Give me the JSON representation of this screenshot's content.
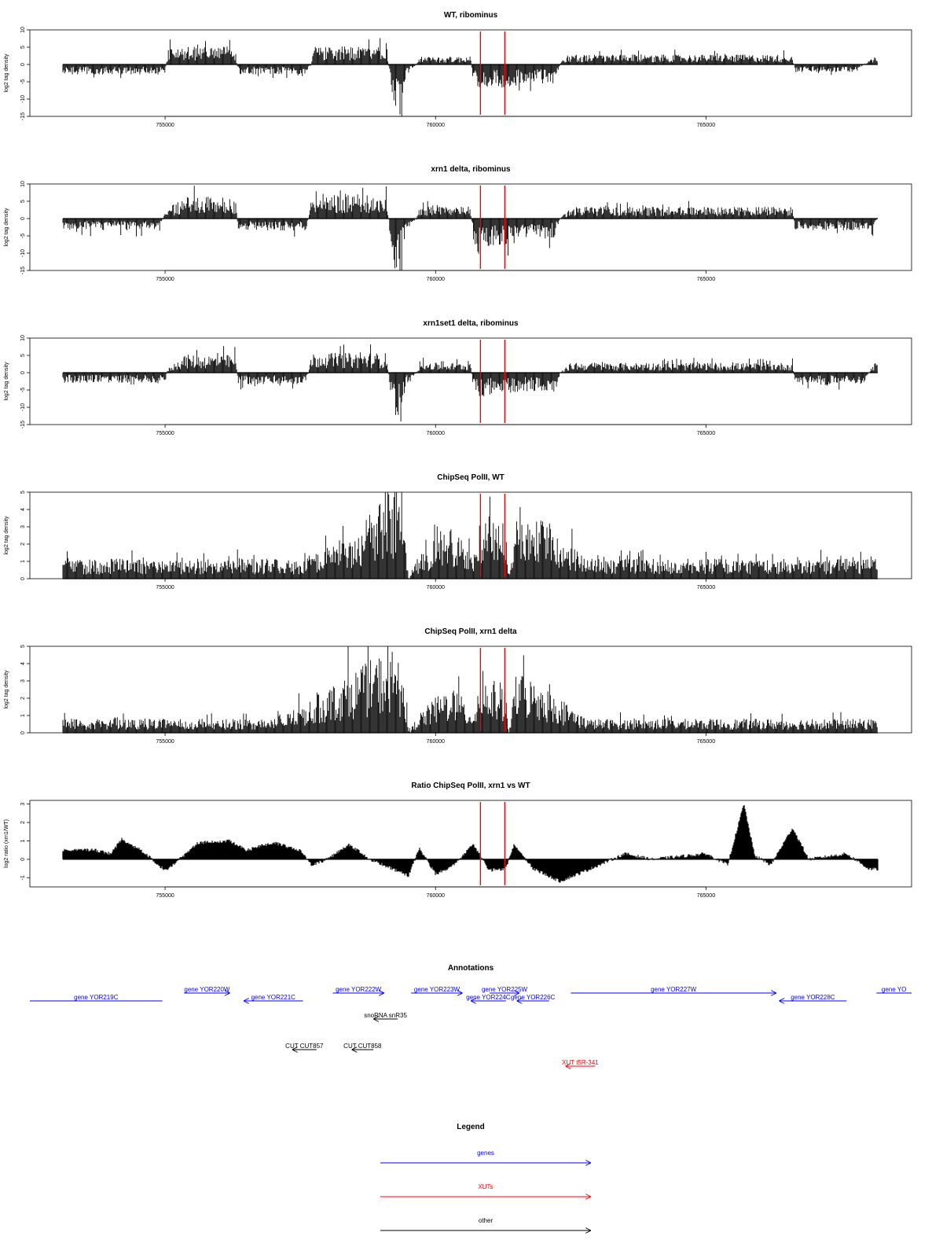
{
  "colors": {
    "gene": "#0000ff",
    "xut": "#ff0000",
    "other": "#000000",
    "marker": "#ff0000",
    "signal": "#000000"
  },
  "chart_data": [
    {
      "type": "bar",
      "title": "WT, ribominus",
      "ylabel": "log2 tag density",
      "ylim": [
        -15,
        10
      ],
      "yticks": [
        "-15",
        "-10",
        "-5",
        "0",
        "5",
        "10"
      ],
      "xlim": [
        752500,
        768800
      ],
      "xticks": [
        "755000",
        "760000",
        "765000"
      ],
      "markers": [
        760830,
        761280
      ],
      "profile": [
        [
          753700,
          -2.5
        ],
        [
          755000,
          -2.5
        ],
        [
          755050,
          4.5
        ],
        [
          756300,
          4.5
        ],
        [
          756350,
          -2.5
        ],
        [
          757600,
          -2.5
        ],
        [
          757700,
          0
        ],
        [
          757750,
          4.5
        ],
        [
          759100,
          4.5
        ],
        [
          759150,
          -3
        ],
        [
          759250,
          -13
        ],
        [
          759350,
          -13
        ],
        [
          759450,
          -3
        ],
        [
          759650,
          0
        ],
        [
          759700,
          2
        ],
        [
          760650,
          2
        ],
        [
          760700,
          -6
        ],
        [
          761450,
          -6
        ],
        [
          761500,
          -5
        ],
        [
          762200,
          -5
        ],
        [
          762300,
          0
        ],
        [
          762400,
          2.5
        ],
        [
          766600,
          2.5
        ],
        [
          766650,
          -2
        ],
        [
          767800,
          -2
        ],
        [
          767900,
          0
        ],
        [
          768200,
          2.5
        ],
        [
          768300,
          2.5
        ]
      ]
    },
    {
      "type": "bar",
      "title": "xrn1 delta, ribominus",
      "ylabel": "log2 tag density",
      "ylim": [
        -15,
        10
      ],
      "yticks": [
        "-15",
        "-10",
        "-5",
        "0",
        "5",
        "10"
      ],
      "xlim": [
        752500,
        768800
      ],
      "xticks": [
        "755000",
        "760000",
        "765000"
      ],
      "markers": [
        760830,
        761280
      ],
      "profile": [
        [
          753700,
          -3
        ],
        [
          754900,
          -3
        ],
        [
          755000,
          2
        ],
        [
          755350,
          5.5
        ],
        [
          756300,
          5.5
        ],
        [
          756350,
          -3
        ],
        [
          757600,
          -3
        ],
        [
          757650,
          0
        ],
        [
          757700,
          6.5
        ],
        [
          759100,
          6
        ],
        [
          759150,
          -3
        ],
        [
          759250,
          -13
        ],
        [
          759350,
          -13
        ],
        [
          759450,
          -3
        ],
        [
          759650,
          0
        ],
        [
          759700,
          3
        ],
        [
          760650,
          3
        ],
        [
          760700,
          -7
        ],
        [
          761450,
          -7
        ],
        [
          761500,
          -5
        ],
        [
          762200,
          -5
        ],
        [
          762300,
          0
        ],
        [
          762500,
          3
        ],
        [
          766600,
          3
        ],
        [
          766650,
          -3
        ],
        [
          768100,
          -3
        ],
        [
          768200,
          2.5
        ],
        [
          768300,
          2.5
        ]
      ]
    },
    {
      "type": "bar",
      "title": "xrn1set1 delta, ribominus",
      "ylabel": "log2 tag density",
      "ylim": [
        -15,
        10
      ],
      "yticks": [
        "-15",
        "-10",
        "-5",
        "0",
        "5",
        "10"
      ],
      "xlim": [
        752500,
        768800
      ],
      "xticks": [
        "755000",
        "760000",
        "765000"
      ],
      "markers": [
        760830,
        761280
      ],
      "profile": [
        [
          753700,
          -2.5
        ],
        [
          755000,
          -2.5
        ],
        [
          755050,
          1
        ],
        [
          755350,
          4.5
        ],
        [
          756300,
          4.5
        ],
        [
          756350,
          -3
        ],
        [
          757600,
          -3
        ],
        [
          757650,
          0
        ],
        [
          757700,
          5
        ],
        [
          759100,
          5
        ],
        [
          759150,
          -3
        ],
        [
          759250,
          -12
        ],
        [
          759350,
          -12
        ],
        [
          759450,
          -3
        ],
        [
          759650,
          0
        ],
        [
          759700,
          2.5
        ],
        [
          760650,
          2.5
        ],
        [
          760700,
          -6
        ],
        [
          761450,
          -6
        ],
        [
          761500,
          -5
        ],
        [
          762200,
          -5
        ],
        [
          762300,
          0
        ],
        [
          762500,
          2.5
        ],
        [
          766600,
          2.5
        ],
        [
          766650,
          -3
        ],
        [
          767900,
          -3
        ],
        [
          768100,
          2.5
        ],
        [
          768300,
          2.5
        ]
      ]
    },
    {
      "type": "bar",
      "title": "ChipSeq PolII, WT",
      "ylabel": "log2 tag density",
      "ylim": [
        0,
        5
      ],
      "yticks": [
        "0",
        "1",
        "2",
        "3",
        "4",
        "5"
      ],
      "xlim": [
        752500,
        768800
      ],
      "xticks": [
        "755000",
        "760000",
        "765000"
      ],
      "markers": [
        760830,
        761280
      ],
      "profile": [
        [
          753700,
          1
        ],
        [
          757600,
          1
        ],
        [
          758600,
          2.5
        ],
        [
          759000,
          4.5
        ],
        [
          759400,
          4.5
        ],
        [
          759500,
          0
        ],
        [
          759700,
          1.2
        ],
        [
          760300,
          2.8
        ],
        [
          760700,
          1
        ],
        [
          760800,
          3.2
        ],
        [
          761300,
          3
        ],
        [
          761350,
          0
        ],
        [
          761500,
          3.8
        ],
        [
          762200,
          2.5
        ],
        [
          762800,
          1
        ],
        [
          768300,
          1
        ]
      ]
    },
    {
      "type": "bar",
      "title": "ChipSeq PolII, xrn1 delta",
      "ylabel": "log2 tag density",
      "ylim": [
        0,
        5
      ],
      "yticks": [
        "0",
        "1",
        "2",
        "3",
        "4",
        "5"
      ],
      "xlim": [
        752500,
        768800
      ],
      "xticks": [
        "755000",
        "760000",
        "765000"
      ],
      "markers": [
        760830,
        761280
      ],
      "profile": [
        [
          753700,
          0.7
        ],
        [
          757000,
          0.7
        ],
        [
          757600,
          1.5
        ],
        [
          758400,
          3
        ],
        [
          759000,
          4
        ],
        [
          759400,
          3.5
        ],
        [
          759500,
          0
        ],
        [
          759700,
          1
        ],
        [
          760300,
          2.5
        ],
        [
          760700,
          1
        ],
        [
          760800,
          2.8
        ],
        [
          761300,
          2.5
        ],
        [
          761350,
          0
        ],
        [
          761500,
          3.2
        ],
        [
          762200,
          2
        ],
        [
          762800,
          0.7
        ],
        [
          768300,
          0.7
        ]
      ]
    },
    {
      "type": "area",
      "title": "Ratio ChipSeq PolII, xrn1 vs WT",
      "ylabel": "log2 ratio (xrn1/WT)",
      "ylim": [
        -1.5,
        3.2
      ],
      "yticks": [
        "-1",
        "0",
        "1",
        "2",
        "3"
      ],
      "xlim": [
        752500,
        768800
      ],
      "xticks": [
        "755000",
        "760000",
        "765000"
      ],
      "markers": [
        760830,
        761280
      ],
      "profile": [
        [
          753700,
          0.5
        ],
        [
          754000,
          0.3
        ],
        [
          754200,
          1.1
        ],
        [
          754600,
          0.4
        ],
        [
          755000,
          -0.6
        ],
        [
          755400,
          0.3
        ],
        [
          755600,
          0.9
        ],
        [
          756200,
          1
        ],
        [
          756500,
          0.5
        ],
        [
          757000,
          0.9
        ],
        [
          757500,
          0.5
        ],
        [
          757700,
          -0.3
        ],
        [
          758000,
          0
        ],
        [
          758400,
          0.8
        ],
        [
          758800,
          0
        ],
        [
          759500,
          -0.9
        ],
        [
          759700,
          0.6
        ],
        [
          760000,
          -0.8
        ],
        [
          760300,
          -0.4
        ],
        [
          760700,
          0.8
        ],
        [
          761000,
          -0.6
        ],
        [
          761300,
          -0.5
        ],
        [
          761450,
          0.8
        ],
        [
          761800,
          -0.5
        ],
        [
          762300,
          -1.2
        ],
        [
          762800,
          -0.6
        ],
        [
          763500,
          0.3
        ],
        [
          764000,
          0
        ],
        [
          765000,
          0.3
        ],
        [
          765400,
          -0.3
        ],
        [
          765700,
          3
        ],
        [
          765900,
          0.2
        ],
        [
          766200,
          -0.3
        ],
        [
          766600,
          1.7
        ],
        [
          766900,
          0
        ],
        [
          767600,
          0.3
        ],
        [
          768000,
          -0.5
        ],
        [
          768300,
          -0.6
        ]
      ]
    }
  ],
  "annotations": {
    "title": "Annotations",
    "xlim": [
      752500,
      768800
    ],
    "features": [
      {
        "label": "gene YOR219C",
        "type": "gene",
        "x1": 752500,
        "x2": 754950,
        "dir": "none",
        "row": 2
      },
      {
        "label": "gene YOR220W",
        "type": "gene",
        "x1": 755350,
        "x2": 756200,
        "dir": "right",
        "row": 1
      },
      {
        "label": "gene YOR221C",
        "type": "gene",
        "x1": 756450,
        "x2": 757550,
        "dir": "left",
        "row": 2
      },
      {
        "label": "gene YOR222W",
        "type": "gene",
        "x1": 758100,
        "x2": 759050,
        "dir": "right",
        "row": 1
      },
      {
        "label": "gene YOR223W",
        "type": "gene",
        "x1": 759550,
        "x2": 760500,
        "dir": "right",
        "row": 1
      },
      {
        "label": "gene YOR224C",
        "type": "gene",
        "x1": 760650,
        "x2": 761300,
        "dir": "left",
        "row": 2
      },
      {
        "label": "gene YOR225W",
        "type": "gene",
        "x1": 761000,
        "x2": 761550,
        "dir": "right",
        "row": 1
      },
      {
        "label": "gene YOR226C",
        "type": "gene",
        "x1": 761500,
        "x2": 762100,
        "dir": "left",
        "row": 2
      },
      {
        "label": "gene YOR227W",
        "type": "gene",
        "x1": 762500,
        "x2": 766300,
        "dir": "right",
        "row": 1
      },
      {
        "label": "gene YOR228C",
        "type": "gene",
        "x1": 766350,
        "x2": 767600,
        "dir": "left",
        "row": 2
      },
      {
        "label": "gene YO",
        "type": "gene",
        "x1": 768150,
        "x2": 768800,
        "dir": "none",
        "row": 1
      },
      {
        "label": "snoRNA snR35",
        "type": "other",
        "x1": 758850,
        "x2": 759300,
        "dir": "left",
        "row": 3
      },
      {
        "label": "CUT CUT857",
        "type": "other",
        "x1": 757350,
        "x2": 757800,
        "dir": "left",
        "row": 4
      },
      {
        "label": "CUT CUT858",
        "type": "other",
        "x1": 758450,
        "x2": 758850,
        "dir": "left",
        "row": 4
      },
      {
        "label": "XUT t5R-341",
        "type": "xut",
        "x1": 762400,
        "x2": 762950,
        "dir": "left",
        "row": 5
      }
    ]
  },
  "legend": {
    "title": "Legend",
    "items": [
      {
        "label": "genes",
        "type": "gene"
      },
      {
        "label": "XUTs",
        "type": "xut"
      },
      {
        "label": "other",
        "type": "other"
      }
    ]
  }
}
